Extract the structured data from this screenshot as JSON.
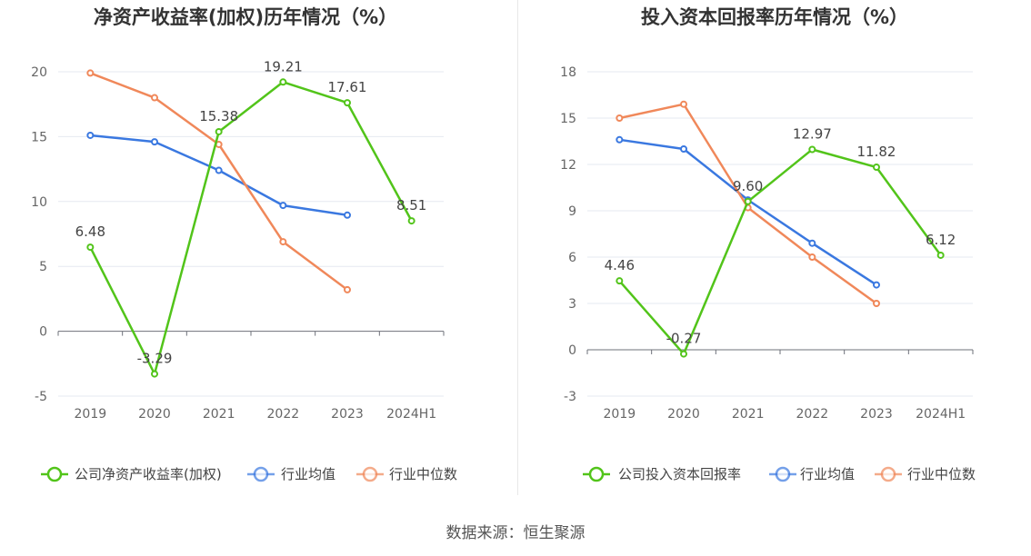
{
  "chart_data": [
    {
      "type": "line",
      "title": "净资产收益率(加权)历年情况（%）",
      "categories": [
        "2019",
        "2020",
        "2021",
        "2022",
        "2023",
        "2024H1"
      ],
      "ylim": [
        -5,
        20
      ],
      "yticks": [
        -5,
        0,
        5,
        10,
        15,
        20
      ],
      "grid": true,
      "legend_position": "bottom",
      "series": [
        {
          "name": "公司净资产收益率(加权)",
          "color": "#52c41a",
          "values": [
            6.48,
            -3.29,
            15.38,
            19.21,
            17.61,
            8.51
          ],
          "labels": true
        },
        {
          "name": "行业均值",
          "color": "#3a78e0",
          "values": [
            15.1,
            14.6,
            12.4,
            9.7,
            8.95,
            null
          ],
          "labels": false
        },
        {
          "name": "行业中位数",
          "color": "#f0885a",
          "values": [
            19.9,
            18.0,
            14.4,
            6.9,
            3.2,
            null
          ],
          "labels": false
        }
      ]
    },
    {
      "type": "line",
      "title": "投入资本回报率历年情况（%）",
      "categories": [
        "2019",
        "2020",
        "2021",
        "2022",
        "2023",
        "2024H1"
      ],
      "ylim": [
        -3,
        18
      ],
      "yticks": [
        -3,
        0,
        3,
        6,
        9,
        12,
        15,
        18
      ],
      "grid": true,
      "legend_position": "bottom",
      "series": [
        {
          "name": "公司投入资本回报率",
          "color": "#52c41a",
          "values": [
            4.46,
            -0.27,
            9.6,
            12.97,
            11.82,
            6.12
          ],
          "labels": true
        },
        {
          "name": "行业均值",
          "color": "#3a78e0",
          "values": [
            13.6,
            13.0,
            9.7,
            6.9,
            4.2,
            null
          ],
          "labels": false
        },
        {
          "name": "行业中位数",
          "color": "#f0885a",
          "values": [
            15.0,
            15.9,
            9.2,
            6.0,
            3.0,
            null
          ],
          "labels": false
        }
      ]
    }
  ],
  "source": "数据来源：恒生聚源"
}
